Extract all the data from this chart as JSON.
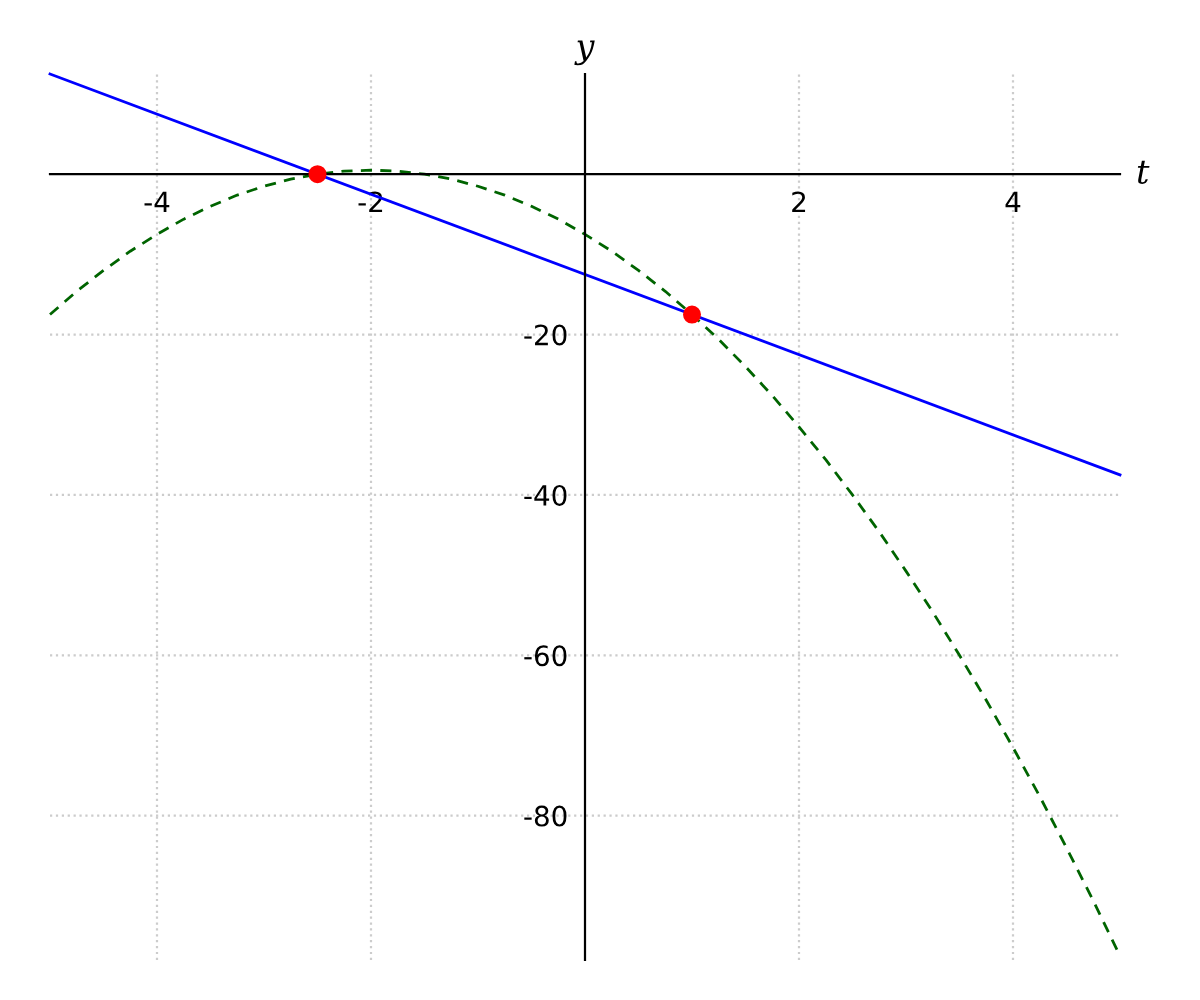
{
  "chart_data": {
    "type": "line",
    "xlabel": "t",
    "ylabel": "y",
    "xlim": [
      -5,
      5
    ],
    "ylim": [
      -98,
      12.5
    ],
    "xticks": [
      {
        "value": -4,
        "label": "-4"
      },
      {
        "value": -2,
        "label": "-2"
      },
      2,
      4
    ],
    "yticks": [
      {
        "value": -80,
        "label": "-80"
      },
      {
        "value": -60,
        "label": "-60"
      },
      {
        "value": -40,
        "label": "-40"
      },
      {
        "value": -20,
        "label": "-20"
      }
    ],
    "grid": true,
    "series": [
      {
        "color": "#0000ff",
        "line_style": "solid",
        "x": [
          -5,
          5
        ],
        "values": [
          12.5,
          -37.5
        ]
      },
      {
        "color": "#006400",
        "line_style": "dashed",
        "x": [
          -5,
          -4.75,
          -4.5,
          -4.25,
          -4,
          -3.75,
          -3.5,
          -3.25,
          -3,
          -2.75,
          -2.5,
          -2.25,
          -2,
          -1.75,
          -1.5,
          -1.25,
          -1,
          -0.75,
          -0.5,
          -0.25,
          0,
          0.25,
          0.5,
          0.75,
          1,
          1.25,
          1.5,
          1.75,
          2,
          2.25,
          2.5,
          2.75,
          3,
          3.25,
          3.5,
          3.75,
          4,
          4.25,
          4.5,
          4.75,
          5
        ],
        "values": [
          -17.5,
          -14.6,
          -12,
          -9.6,
          -7.5,
          -5.6,
          -4,
          -2.6,
          -1.5,
          -0.6,
          0,
          0.4,
          0.5,
          0.4,
          0,
          -0.6,
          -1.5,
          -2.6,
          -4,
          -5.6,
          -7.5,
          -9.6,
          -12,
          -14.6,
          -17.5,
          -20.6,
          -24,
          -27.6,
          -31.5,
          -35.6,
          -40,
          -44.6,
          -49.5,
          -54.6,
          -60,
          -65.6,
          -71.5,
          -77.6,
          -84,
          -90.6,
          -97.5
        ]
      },
      {
        "type": "scatter",
        "color": "#ff0000",
        "marker": "circle",
        "x": [
          -2.5,
          1
        ],
        "values": [
          0,
          -17.5
        ]
      }
    ]
  }
}
